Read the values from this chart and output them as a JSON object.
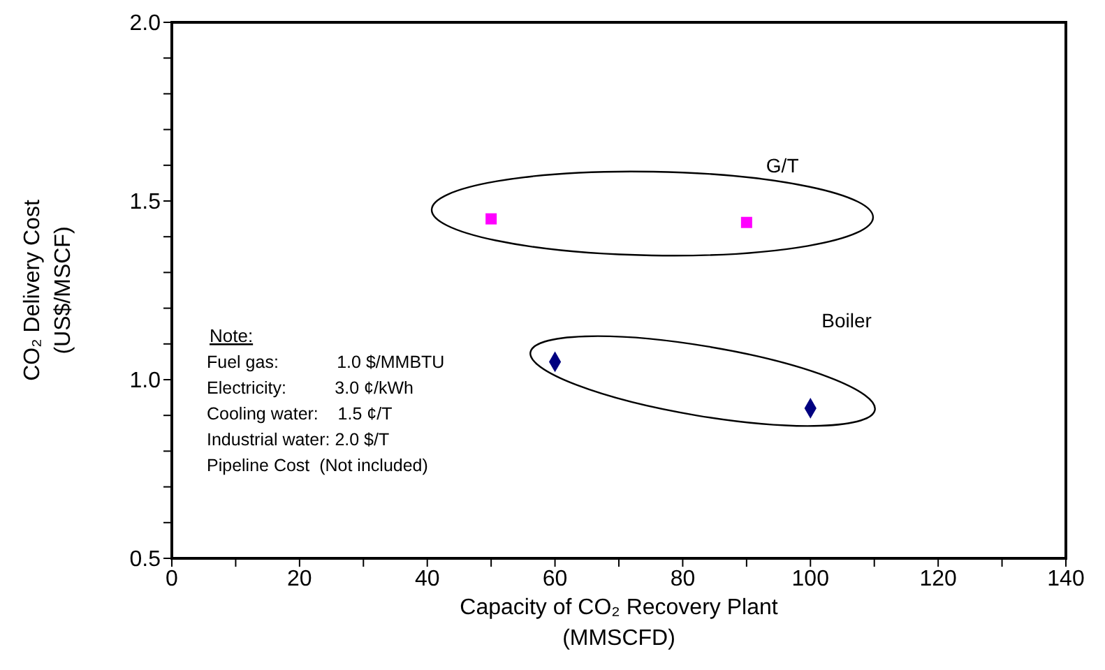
{
  "chart_data": {
    "type": "scatter",
    "xlabel": "Capacity of CO₂ Recovery Plant\n(MMSCFD)",
    "ylabel": "CO₂ Delivery Cost\n(US$/MSCF)",
    "xlim": [
      0,
      140
    ],
    "xticks": [
      0,
      {
        "value": 10,
        "label": null
      },
      20,
      {
        "value": 30,
        "label": null
      },
      40,
      {
        "value": 50,
        "label": null
      },
      60,
      {
        "value": 70,
        "label": null
      },
      80,
      {
        "value": 90,
        "label": null
      },
      100,
      {
        "value": 110,
        "label": null
      },
      120,
      {
        "value": 130,
        "label": null
      },
      140
    ],
    "ylim": [
      0.5,
      2.0
    ],
    "yticks": [
      {
        "value": 0.5,
        "label": "0.5"
      },
      {
        "value": 0.6,
        "label": null
      },
      {
        "value": 0.7,
        "label": null
      },
      {
        "value": 0.8,
        "label": null
      },
      {
        "value": 0.9,
        "label": null
      },
      {
        "value": 1,
        "label": "1.0"
      },
      {
        "value": 1.1,
        "label": null
      },
      {
        "value": 1.2,
        "label": null
      },
      {
        "value": 1.3,
        "label": null
      },
      {
        "value": 1.4,
        "label": null
      },
      {
        "value": 1.5,
        "label": "1.5"
      },
      {
        "value": 1.6,
        "label": null
      },
      {
        "value": 1.7,
        "label": null
      },
      {
        "value": 1.8,
        "label": null
      },
      {
        "value": 1.9,
        "label": null
      },
      {
        "value": 2,
        "label": "2.0"
      }
    ],
    "series": [
      {
        "name": "G/T",
        "color": "#ff00ff",
        "marker": "square",
        "x": [
          50,
          90
        ],
        "values": [
          1.45,
          1.44
        ]
      },
      {
        "name": "Boiler",
        "color": "#000080",
        "marker": "diamond",
        "x": [
          60,
          100
        ],
        "values": [
          1.05,
          0.92
        ]
      }
    ],
    "annotations": [
      "Note:",
      "Fuel gas:            1.0 $/MMBTU",
      "Electricity:          3.0 ¢/kWh",
      "Cooling water:    1.5 ¢/T",
      "Industrial water: 2.0 $/T",
      "Pipeline Cost  (Not included)"
    ],
    "grid": false,
    "legend": false
  }
}
